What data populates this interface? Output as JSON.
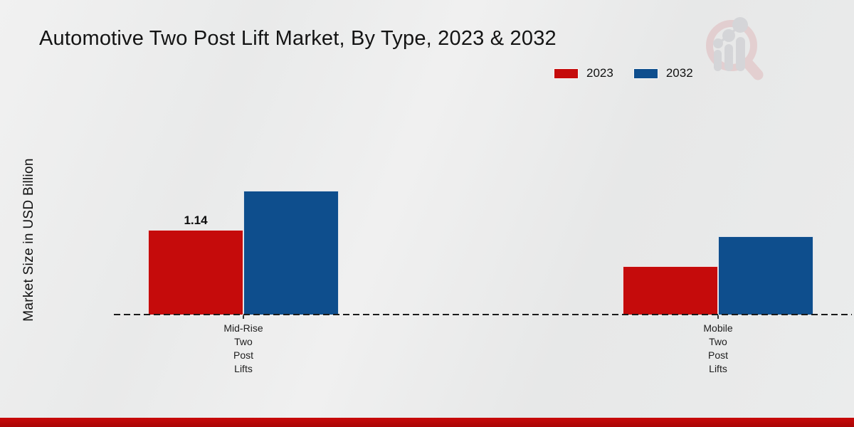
{
  "title": "Automotive Two Post Lift Market, By Type, 2023 & 2032",
  "y_axis_label": "Market Size in USD Billion",
  "accent": {
    "footer_bar_color": "#b50808",
    "series_2023_color": "#c50b0b",
    "series_2032_color": "#0e4e8d"
  },
  "logo": {
    "name": "magnifier-bar-chart-logo"
  },
  "chart_data": {
    "type": "bar",
    "title": "Automotive Two Post Lift Market, By Type, 2023 & 2032",
    "xlabel": "",
    "ylabel": "Market Size in USD Billion",
    "categories": [
      "Mid-Rise Two Post Lifts",
      "Mobile Two Post Lifts"
    ],
    "categories_multiline": [
      [
        "Mid-Rise",
        "Two",
        "Post",
        "Lifts"
      ],
      [
        "Mobile",
        "Two",
        "Post",
        "Lifts"
      ]
    ],
    "series": [
      {
        "name": "2023",
        "color": "#c50b0b",
        "values": [
          1.14,
          0.65
        ],
        "labels": [
          "1.14",
          ""
        ]
      },
      {
        "name": "2032",
        "color": "#0e4e8d",
        "values": [
          1.67,
          1.05
        ],
        "labels": [
          "",
          ""
        ]
      }
    ],
    "ylim": [
      0,
      2.0
    ],
    "grid": false,
    "legend_position": "top-right",
    "baseline_style": "dashed",
    "value_axis_ticks_shown": false
  }
}
